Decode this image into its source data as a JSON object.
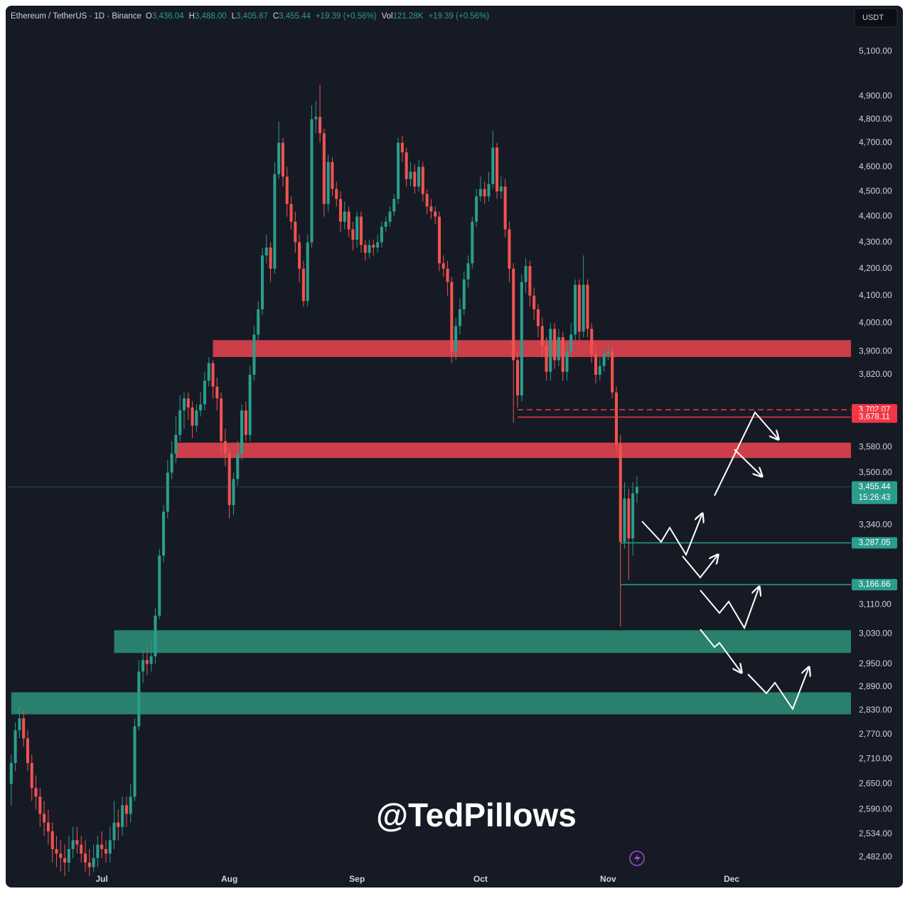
{
  "chart_data": {
    "type": "candlestick",
    "title": "Ethereum / TetherUS · 1D · Binance",
    "header_fields": [
      {
        "key": "O",
        "value": "3,436.04"
      },
      {
        "key": "H",
        "value": "3,488.00"
      },
      {
        "key": "L",
        "value": "3,405.87"
      },
      {
        "key": "C",
        "value": "3,455.44"
      },
      {
        "value": "+19.39 (+0.56%)"
      },
      {
        "key": "Vol",
        "value": "121.28K"
      },
      {
        "value": "+19.39 (+0.56%)"
      }
    ],
    "currency": "USDT",
    "watermark": "@TedPillows",
    "log_scale": true,
    "grid": false,
    "up_color": "#2a9d8c",
    "down_color": "#ef5350",
    "xlim": [
      -1,
      204
    ],
    "xticks": [
      {
        "value": 22,
        "label": "Jul"
      },
      {
        "value": 53,
        "label": "Aug"
      },
      {
        "value": 84,
        "label": "Sep"
      },
      {
        "value": 114,
        "label": "Oct"
      },
      {
        "value": 145,
        "label": "Nov"
      },
      {
        "value": 175,
        "label": "Dec"
      }
    ],
    "ylim": [
      2459,
      5306
    ],
    "yticks": [
      {
        "value": 5100,
        "label": "5,100.00"
      },
      {
        "value": 4900,
        "label": "4,900.00"
      },
      {
        "value": 4800,
        "label": "4,800.00"
      },
      {
        "value": 4700,
        "label": "4,700.00"
      },
      {
        "value": 4600,
        "label": "4,600.00"
      },
      {
        "value": 4500,
        "label": "4,500.00"
      },
      {
        "value": 4400,
        "label": "4,400.00"
      },
      {
        "value": 4300,
        "label": "4,300.00"
      },
      {
        "value": 4200,
        "label": "4,200.00"
      },
      {
        "value": 4100,
        "label": "4,100.00"
      },
      {
        "value": 4000,
        "label": "4,000.00"
      },
      {
        "value": 3900,
        "label": "3,900.00"
      },
      {
        "value": 3820,
        "label": "3,820.00"
      },
      {
        "value": 3580,
        "label": "3,580.00"
      },
      {
        "value": 3500,
        "label": "3,500.00"
      },
      {
        "value": 3340,
        "label": "3,340.00"
      },
      {
        "value": 3110,
        "label": "3,110.00"
      },
      {
        "value": 3030,
        "label": "3,030.00"
      },
      {
        "value": 2950,
        "label": "2,950.00"
      },
      {
        "value": 2890,
        "label": "2,890.00"
      },
      {
        "value": 2830,
        "label": "2,830.00"
      },
      {
        "value": 2770,
        "label": "2,770.00"
      },
      {
        "value": 2710,
        "label": "2,710.00"
      },
      {
        "value": 2650,
        "label": "2,650.00"
      },
      {
        "value": 2590,
        "label": "2,590.00"
      },
      {
        "value": 2534,
        "label": "2,534.00"
      },
      {
        "value": 2482,
        "label": "2,482.00"
      }
    ],
    "open": [
      2650,
      2700,
      2780,
      2810,
      2760,
      2700,
      2640,
      2620,
      2580,
      2560,
      2540,
      2500,
      2490,
      2480,
      2470,
      2500,
      2520,
      2510,
      2490,
      2470,
      2460,
      2480,
      2510,
      2500,
      2490,
      2520,
      2560,
      2550,
      2600,
      2580,
      2620,
      2790,
      2930,
      2960,
      2950,
      2970,
      3080,
      3250,
      3380,
      3500,
      3560,
      3620,
      3700,
      3740,
      3710,
      3650,
      3700,
      3720,
      3800,
      3860,
      3780,
      3740,
      3600,
      3560,
      3400,
      3480,
      3560,
      3700,
      3620,
      3820,
      3960,
      4050,
      4250,
      4280,
      4200,
      4570,
      4700,
      4560,
      4450,
      4380,
      4300,
      4200,
      4080,
      4300,
      4800,
      4810,
      4740,
      4450,
      4620,
      4510,
      4470,
      4380,
      4420,
      4350,
      4310,
      4400,
      4290,
      4260,
      4290,
      4280,
      4300,
      4360,
      4380,
      4420,
      4470,
      4700,
      4660,
      4550,
      4580,
      4520,
      4600,
      4490,
      4440,
      4420,
      4400,
      4220,
      4200,
      4150,
      3900,
      3990,
      4050,
      4160,
      4220,
      4380,
      4480,
      4510,
      4480,
      4530,
      4680,
      4500,
      4520,
      4350,
      4200,
      3870,
      3750,
      4150,
      4210,
      4100,
      4050,
      3990,
      3920,
      3830,
      3980,
      3870,
      3950,
      3830,
      3900,
      3960,
      4140,
      3970,
      4140,
      3980,
      3890,
      3820,
      3850,
      3890,
      3900,
      3760,
      3590,
      3290,
      3420,
      3300,
      3436.04
    ],
    "high": [
      2720,
      2800,
      2840,
      2830,
      2780,
      2720,
      2670,
      2640,
      2610,
      2590,
      2560,
      2530,
      2520,
      2510,
      2530,
      2550,
      2550,
      2530,
      2520,
      2500,
      2510,
      2530,
      2540,
      2520,
      2550,
      2610,
      2590,
      2620,
      2620,
      2650,
      2810,
      2960,
      2990,
      2990,
      3010,
      3100,
      3270,
      3400,
      3540,
      3600,
      3680,
      3750,
      3760,
      3760,
      3730,
      3720,
      3760,
      3830,
      3880,
      3870,
      3810,
      3760,
      3640,
      3580,
      3500,
      3600,
      3720,
      3730,
      3850,
      3990,
      4080,
      4280,
      4330,
      4300,
      4620,
      4790,
      4720,
      4600,
      4480,
      4420,
      4330,
      4230,
      4330,
      4860,
      4880,
      4950,
      4760,
      4650,
      4640,
      4540,
      4500,
      4460,
      4440,
      4380,
      4420,
      4420,
      4310,
      4310,
      4310,
      4330,
      4380,
      4400,
      4440,
      4490,
      4720,
      4730,
      4680,
      4620,
      4610,
      4630,
      4620,
      4510,
      4470,
      4440,
      4420,
      4250,
      4230,
      4170,
      4020,
      4090,
      4190,
      4250,
      4400,
      4510,
      4560,
      4540,
      4580,
      4750,
      4700,
      4560,
      4550,
      4380,
      4220,
      3900,
      4180,
      4240,
      4230,
      4130,
      4070,
      4020,
      3950,
      4000,
      4000,
      3980,
      3970,
      3930,
      4000,
      4160,
      4160,
      4250,
      4160,
      4000,
      3920,
      3880,
      3910,
      3930,
      3920,
      3780,
      3620,
      3470,
      3450,
      3470,
      3488
    ],
    "low": [
      2600,
      2680,
      2760,
      2740,
      2680,
      2610,
      2590,
      2550,
      2530,
      2510,
      2470,
      2460,
      2450,
      2440,
      2450,
      2480,
      2490,
      2470,
      2450,
      2440,
      2450,
      2460,
      2480,
      2470,
      2470,
      2500,
      2520,
      2530,
      2550,
      2560,
      2610,
      2780,
      2900,
      2920,
      2930,
      2950,
      3070,
      3230,
      3360,
      3480,
      3530,
      3600,
      3640,
      3670,
      3610,
      3630,
      3680,
      3700,
      3780,
      3740,
      3700,
      3560,
      3520,
      3360,
      3370,
      3460,
      3540,
      3600,
      3600,
      3800,
      3940,
      4030,
      4220,
      4150,
      4180,
      4550,
      4520,
      4400,
      4350,
      4260,
      4150,
      4060,
      4060,
      4280,
      4740,
      4700,
      4400,
      4420,
      4480,
      4440,
      4340,
      4350,
      4320,
      4270,
      4280,
      4260,
      4230,
      4240,
      4250,
      4260,
      4280,
      4340,
      4360,
      4400,
      4450,
      4620,
      4520,
      4520,
      4490,
      4500,
      4460,
      4410,
      4390,
      4370,
      4190,
      4170,
      4100,
      3860,
      3870,
      3960,
      4030,
      4130,
      4200,
      4360,
      4460,
      4450,
      4460,
      4510,
      4470,
      4470,
      4320,
      4150,
      3660,
      3710,
      3730,
      4110,
      4060,
      4010,
      3950,
      3880,
      3800,
      3800,
      3840,
      3850,
      3800,
      3800,
      3880,
      3940,
      3940,
      3950,
      3950,
      3860,
      3790,
      3800,
      3830,
      3870,
      3740,
      3560,
      3050,
      3270,
      3180,
      3250,
      3405.87
    ],
    "close": [
      2700,
      2780,
      2810,
      2760,
      2700,
      2640,
      2620,
      2580,
      2560,
      2540,
      2500,
      2490,
      2480,
      2470,
      2500,
      2520,
      2510,
      2490,
      2470,
      2460,
      2480,
      2510,
      2500,
      2490,
      2520,
      2560,
      2550,
      2600,
      2580,
      2620,
      2790,
      2930,
      2960,
      2950,
      2970,
      3080,
      3250,
      3380,
      3500,
      3560,
      3620,
      3700,
      3740,
      3710,
      3650,
      3700,
      3720,
      3800,
      3860,
      3780,
      3740,
      3600,
      3560,
      3400,
      3480,
      3560,
      3700,
      3620,
      3820,
      3960,
      4050,
      4250,
      4280,
      4200,
      4570,
      4700,
      4560,
      4450,
      4380,
      4300,
      4200,
      4080,
      4300,
      4800,
      4810,
      4740,
      4450,
      4620,
      4510,
      4470,
      4380,
      4420,
      4350,
      4310,
      4400,
      4290,
      4260,
      4290,
      4280,
      4300,
      4360,
      4380,
      4420,
      4470,
      4700,
      4660,
      4550,
      4580,
      4520,
      4600,
      4490,
      4440,
      4420,
      4400,
      4220,
      4200,
      4150,
      3900,
      3990,
      4050,
      4160,
      4220,
      4380,
      4480,
      4510,
      4480,
      4530,
      4680,
      4500,
      4520,
      4350,
      4200,
      3870,
      3750,
      4150,
      4210,
      4100,
      4050,
      3990,
      3920,
      3830,
      3980,
      3870,
      3950,
      3830,
      3900,
      3960,
      4140,
      3970,
      4140,
      3980,
      3890,
      3820,
      3850,
      3890,
      3900,
      3760,
      3590,
      3290,
      3420,
      3300,
      3436.04,
      3455.44
    ],
    "zones": [
      {
        "low": 3881,
        "high": 3940,
        "start": 49,
        "color": "#e0434f"
      },
      {
        "low": 3546,
        "high": 3595,
        "start": 40,
        "color": "#e0434f"
      },
      {
        "low": 2979,
        "high": 3040,
        "start": 25,
        "color": "#2a8c76"
      },
      {
        "low": 2820,
        "high": 2876,
        "start": 0,
        "color": "#2a8c76"
      }
    ],
    "price_lines": [
      {
        "value": 3702.07,
        "label": "3,702.07",
        "color": "#f23645",
        "dashed": true,
        "start": 123
      },
      {
        "value": 3678.11,
        "label": "3,678.11",
        "color": "#f23645",
        "start": 123
      },
      {
        "value": 3455.44,
        "label": "3,455.44",
        "countdown": "15:26:43",
        "color": "#2a9d8c",
        "start": -1,
        "faint": true
      },
      {
        "value": 3287.05,
        "label": "3,287.05",
        "color": "#2a9d8c",
        "start": 148
      },
      {
        "value": 3166.66,
        "label": "3,166.66",
        "color": "#2a9d8c",
        "start": 148
      }
    ]
  }
}
